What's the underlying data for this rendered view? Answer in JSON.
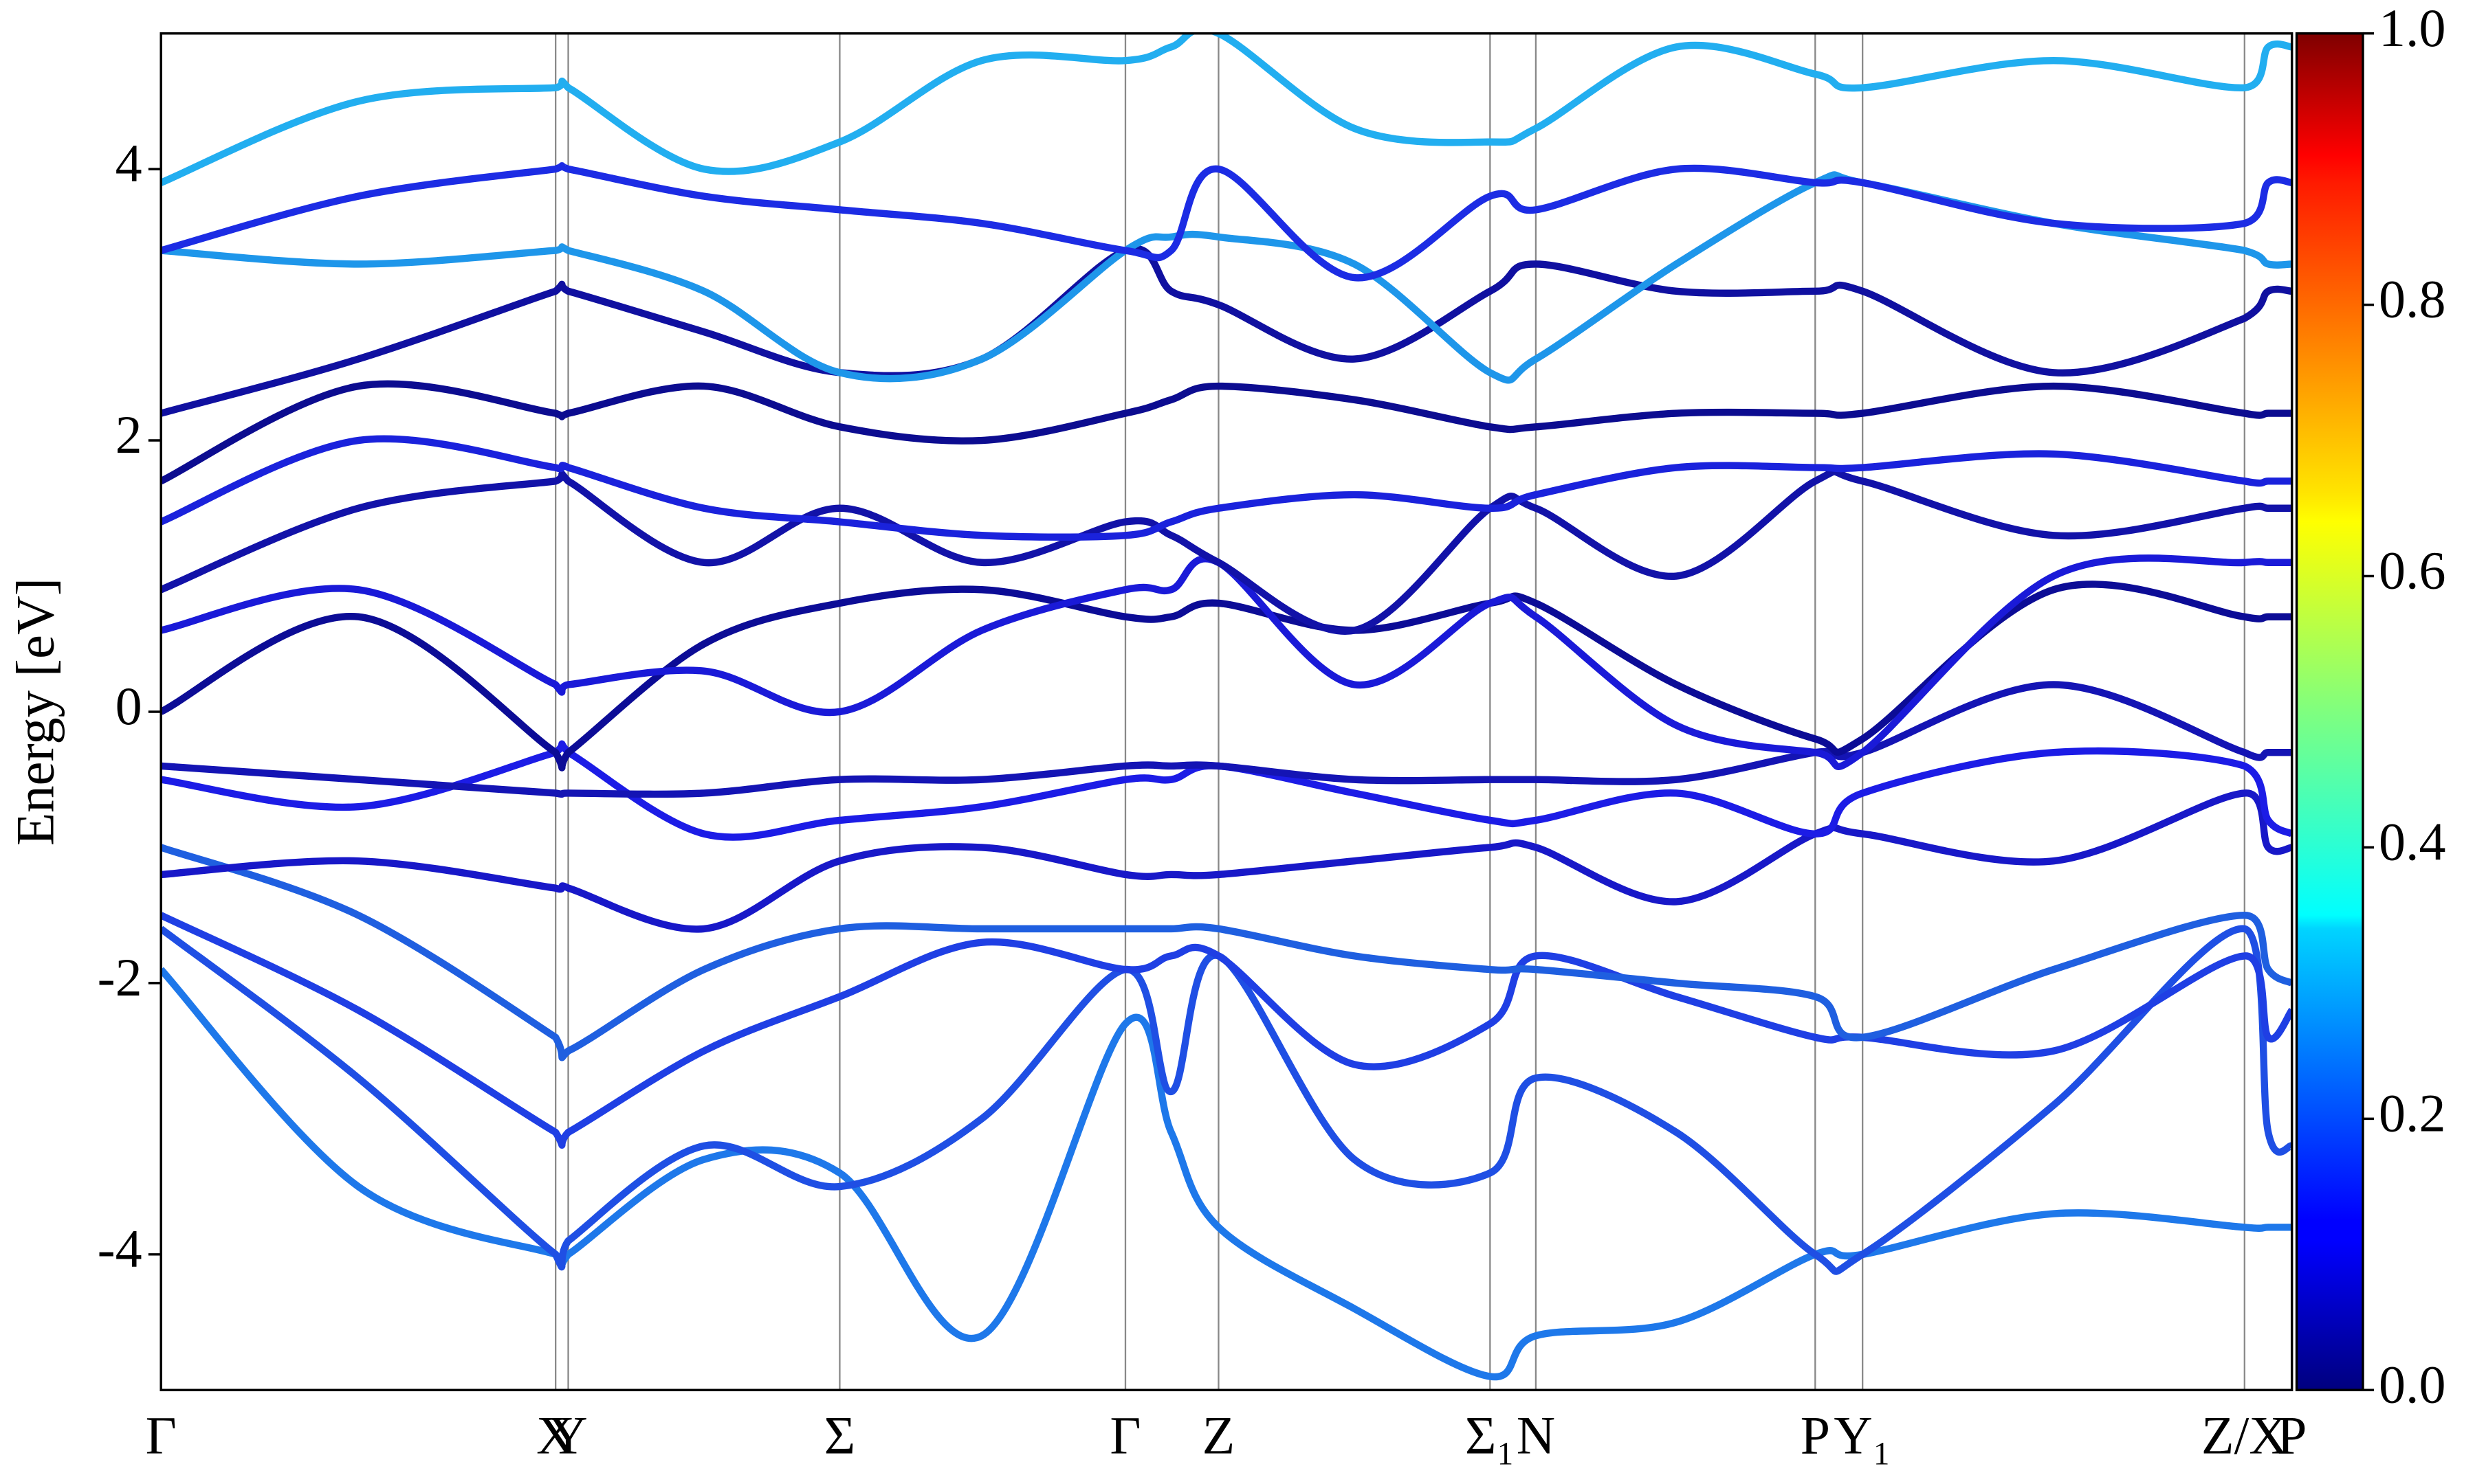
{
  "chart_data": {
    "type": "line",
    "y_label": "Energy [eV]",
    "x": [
      0,
      125,
      250,
      258,
      344,
      430,
      520,
      611,
      640,
      670,
      756,
      842,
      871,
      960,
      1048,
      1078,
      1199,
      1320,
      1335,
      1350
    ],
    "xlim": [
      0,
      1350
    ],
    "xticks": [
      {
        "value": 0,
        "label": "Γ"
      },
      {
        "value": 250,
        "label": "X"
      },
      {
        "value": 258,
        "label": "Y"
      },
      {
        "value": 430,
        "label": "Σ"
      },
      {
        "value": 611,
        "label": "Γ"
      },
      {
        "value": 670,
        "label": "Z"
      },
      {
        "value": 842,
        "label": "Σ₁"
      },
      {
        "value": 871,
        "label": "N"
      },
      {
        "value": 1048,
        "label": "P"
      },
      {
        "value": 1078,
        "label": "Y₁"
      },
      {
        "value": 1320,
        "label": "Z/X"
      },
      {
        "value": 1350,
        "label": "P"
      }
    ],
    "ylim": [
      -5,
      5
    ],
    "yticks": [
      -4,
      -2,
      0,
      2,
      4
    ],
    "colorbar": {
      "colormap": "jet",
      "lim": [
        0,
        1
      ],
      "ticks": [
        {
          "value": 0,
          "label": "0.0"
        },
        {
          "value": 0.2,
          "label": "0.2"
        },
        {
          "value": 0.4,
          "label": "0.4"
        },
        {
          "value": 0.6,
          "label": "0.6"
        },
        {
          "value": 0.8,
          "label": "0.8"
        },
        {
          "value": 1,
          "label": "1.0"
        }
      ]
    },
    "series": [
      {
        "color": "#1e78ea",
        "values": [
          -1.9,
          -3.5,
          -4.0,
          -4.0,
          -3.3,
          -3.4,
          -4.6,
          -2.3,
          -3.1,
          -3.8,
          -4.4,
          -4.9,
          -4.6,
          -4.5,
          -4.0,
          -4.0,
          -3.7,
          -3.8,
          -3.8,
          -3.8
        ]
      },
      {
        "color": "#1f4fe4",
        "values": [
          -1.6,
          -2.7,
          -4.0,
          -3.9,
          -3.2,
          -3.5,
          -3.0,
          -1.9,
          -2.8,
          -1.8,
          -3.3,
          -3.4,
          -2.7,
          -3.1,
          -4.0,
          -4.0,
          -2.9,
          -1.6,
          -3.1,
          -3.2
        ]
      },
      {
        "color": "#1f3fe4",
        "values": [
          -1.5,
          -2.2,
          -3.1,
          -3.1,
          -2.5,
          -2.1,
          -1.7,
          -1.9,
          -1.8,
          -1.8,
          -2.6,
          -2.3,
          -1.8,
          -2.1,
          -2.4,
          -2.4,
          -2.5,
          -1.8,
          -2.4,
          -2.2
        ]
      },
      {
        "color": "#1f5fe0",
        "values": [
          -1.0,
          -1.5,
          -2.4,
          -2.5,
          -1.9,
          -1.6,
          -1.6,
          -1.6,
          -1.6,
          -1.6,
          -1.8,
          -1.9,
          -1.9,
          -2.0,
          -2.1,
          -2.4,
          -1.9,
          -1.5,
          -1.9,
          -2.0
        ]
      },
      {
        "color": "#1818c8",
        "values": [
          -1.2,
          -1.1,
          -1.3,
          -1.3,
          -1.6,
          -1.1,
          -1.0,
          -1.2,
          -1.2,
          -1.2,
          -1.1,
          -1.0,
          -1.0,
          -1.4,
          -0.9,
          -0.9,
          -1.1,
          -0.6,
          -1.0,
          -1.0
        ]
      },
      {
        "color": "#1c1ce6",
        "values": [
          -0.5,
          -0.7,
          -0.3,
          -0.3,
          -0.9,
          -0.8,
          -0.7,
          -0.5,
          -0.5,
          -0.4,
          -0.6,
          -0.8,
          -0.8,
          -0.6,
          -0.9,
          -0.6,
          -0.3,
          -0.4,
          -0.8,
          -0.9
        ]
      },
      {
        "color": "#1414b4",
        "values": [
          -0.4,
          -0.5,
          -0.6,
          -0.6,
          -0.6,
          -0.5,
          -0.5,
          -0.4,
          -0.4,
          -0.4,
          -0.5,
          -0.5,
          -0.5,
          -0.5,
          -0.3,
          -0.3,
          0.2,
          -0.3,
          -0.3,
          -0.3
        ]
      },
      {
        "color": "#0c0c96",
        "values": [
          0.0,
          0.7,
          -0.3,
          -0.3,
          0.5,
          0.8,
          0.9,
          0.7,
          0.7,
          0.8,
          0.6,
          0.8,
          0.8,
          0.2,
          -0.2,
          -0.2,
          0.9,
          0.7,
          0.7,
          0.7
        ]
      },
      {
        "color": "#1a1ad8",
        "values": [
          0.6,
          0.9,
          0.2,
          0.2,
          0.3,
          0.0,
          0.6,
          0.9,
          0.9,
          1.1,
          0.2,
          0.8,
          0.7,
          -0.1,
          -0.3,
          -0.3,
          1.0,
          1.1,
          1.1,
          1.1
        ]
      },
      {
        "color": "#1212a8",
        "values": [
          0.9,
          1.5,
          1.7,
          1.7,
          1.1,
          1.5,
          1.1,
          1.4,
          1.3,
          1.1,
          0.6,
          1.5,
          1.5,
          1.0,
          1.7,
          1.7,
          1.3,
          1.5,
          1.5,
          1.5
        ]
      },
      {
        "color": "#1a22dc",
        "values": [
          1.4,
          2.0,
          1.8,
          1.8,
          1.5,
          1.4,
          1.3,
          1.3,
          1.4,
          1.5,
          1.6,
          1.5,
          1.6,
          1.8,
          1.8,
          1.8,
          1.9,
          1.7,
          1.7,
          1.7
        ]
      },
      {
        "color": "#0c0c90",
        "values": [
          1.7,
          2.4,
          2.2,
          2.2,
          2.4,
          2.1,
          2.0,
          2.2,
          2.3,
          2.4,
          2.3,
          2.1,
          2.1,
          2.2,
          2.2,
          2.2,
          2.4,
          2.2,
          2.2,
          2.2
        ]
      },
      {
        "color": "#1010a0",
        "values": [
          2.2,
          2.6,
          3.1,
          3.1,
          2.8,
          2.5,
          2.6,
          3.4,
          3.1,
          3.0,
          2.6,
          3.1,
          3.3,
          3.1,
          3.1,
          3.1,
          2.5,
          2.9,
          3.1,
          3.1
        ]
      },
      {
        "color": "#1e96ea",
        "values": [
          3.4,
          3.3,
          3.4,
          3.4,
          3.1,
          2.5,
          2.6,
          3.4,
          3.5,
          3.5,
          3.3,
          2.5,
          2.6,
          3.3,
          3.9,
          3.9,
          3.6,
          3.4,
          3.3,
          3.3
        ]
      },
      {
        "color": "#1c2ce4",
        "values": [
          3.4,
          3.8,
          4.0,
          4.0,
          3.8,
          3.7,
          3.6,
          3.4,
          3.4,
          4.0,
          3.2,
          3.8,
          3.7,
          4.0,
          3.9,
          3.9,
          3.6,
          3.6,
          3.9,
          3.9
        ]
      },
      {
        "color": "#22aef0",
        "values": [
          3.9,
          4.5,
          4.6,
          4.6,
          4.0,
          4.2,
          4.8,
          4.8,
          4.9,
          5.0,
          4.3,
          4.2,
          4.3,
          4.9,
          4.7,
          4.6,
          4.8,
          4.6,
          4.9,
          4.9
        ]
      }
    ]
  }
}
